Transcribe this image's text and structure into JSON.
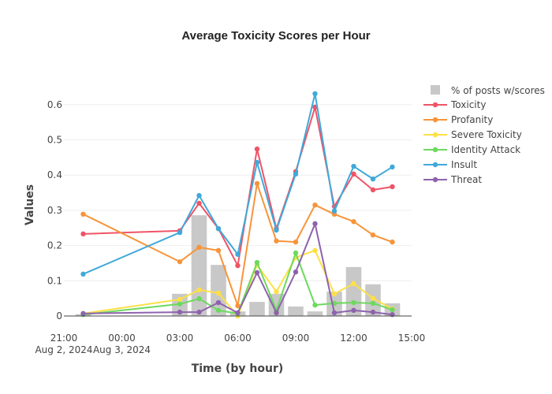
{
  "chart_data": {
    "type": "line",
    "title": "Average Toxicity Scores per Hour",
    "xlabel": "Time (by hour)",
    "ylabel": "Values",
    "ylim": [
      0,
      0.66
    ],
    "yticks": [
      0,
      0.1,
      0.2,
      0.3,
      0.4,
      0.5,
      0.6
    ],
    "ytick_labels": [
      "0",
      "0.1",
      "0.2",
      "0.3",
      "0.4",
      "0.5",
      "0.6"
    ],
    "xlim_hours": [
      0,
      18
    ],
    "xticks": [
      {
        "hour": 0,
        "label": "21:00",
        "sublabel": "Aug 2, 2024"
      },
      {
        "hour": 3,
        "label": "00:00",
        "sublabel": "Aug 3, 2024"
      },
      {
        "hour": 6,
        "label": "03:00",
        "sublabel": ""
      },
      {
        "hour": 9,
        "label": "06:00",
        "sublabel": ""
      },
      {
        "hour": 12,
        "label": "09:00",
        "sublabel": ""
      },
      {
        "hour": 15,
        "label": "12:00",
        "sublabel": ""
      },
      {
        "hour": 18,
        "label": "15:00",
        "sublabel": ""
      }
    ],
    "x": [
      "2024-08-02 22:00",
      "2024-08-03 03:00",
      "04:00",
      "05:00",
      "06:00",
      "07:00",
      "08:00",
      "09:00",
      "10:00",
      "11:00",
      "12:00",
      "13:00",
      "14:00"
    ],
    "x_hours": [
      1,
      6,
      7,
      8,
      9,
      10,
      11,
      12,
      13,
      14,
      15,
      16,
      17
    ],
    "grid": true,
    "legend_position": "right",
    "bars": {
      "name": "% of posts w/scores",
      "color": "#c8c8c8",
      "values": [
        0.005,
        0.063,
        0.286,
        0.145,
        0.013,
        0.04,
        0.063,
        0.027,
        0.013,
        0.069,
        0.139,
        0.09,
        0.036
      ]
    },
    "series": [
      {
        "name": "Toxicity",
        "color": "#ef5466",
        "values": [
          0.233,
          0.242,
          0.32,
          0.248,
          0.143,
          0.474,
          0.248,
          0.41,
          0.593,
          0.311,
          0.403,
          0.358,
          0.367
        ]
      },
      {
        "name": "Profanity",
        "color": "#f7943a",
        "values": [
          0.289,
          0.154,
          0.195,
          0.186,
          0.029,
          0.376,
          0.213,
          0.21,
          0.315,
          0.289,
          0.268,
          0.23,
          0.21
        ]
      },
      {
        "name": "Severe Toxicity",
        "color": "#fde047",
        "values": [
          0.007,
          0.047,
          0.074,
          0.065,
          0.0,
          0.145,
          0.069,
          0.166,
          0.186,
          0.063,
          0.092,
          0.05,
          0.02
        ]
      },
      {
        "name": "Identity Attack",
        "color": "#6dd95e",
        "values": [
          0.004,
          0.034,
          0.049,
          0.016,
          0.007,
          0.152,
          0.016,
          0.179,
          0.031,
          0.036,
          0.038,
          0.036,
          0.018
        ]
      },
      {
        "name": "Insult",
        "color": "#40a9d9",
        "values": [
          0.119,
          0.237,
          0.342,
          0.248,
          0.175,
          0.436,
          0.244,
          0.403,
          0.631,
          0.298,
          0.425,
          0.389,
          0.423
        ]
      },
      {
        "name": "Threat",
        "color": "#8e63ad",
        "values": [
          0.007,
          0.011,
          0.011,
          0.038,
          0.009,
          0.123,
          0.009,
          0.125,
          0.262,
          0.009,
          0.016,
          0.011,
          0.004
        ]
      }
    ]
  }
}
